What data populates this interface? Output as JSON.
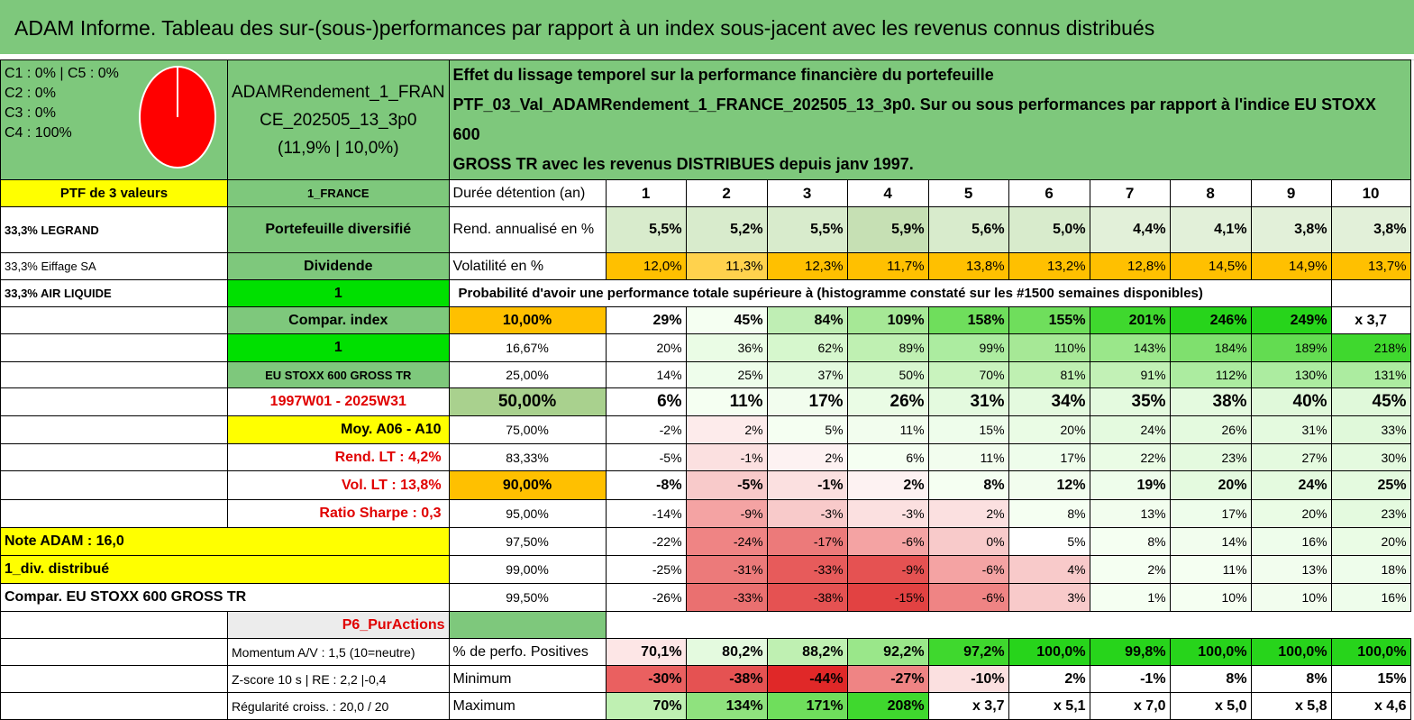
{
  "title": "ADAM Informe. Tableau des sur-(sous-)performances par rapport à un index sous-jacent avec les revenus connus distribués",
  "pie": {
    "labels": [
      "C1 : 0% | C5 : 0%",
      "C2 : 0%",
      "C3 : 0%",
      "C4 : 100%"
    ],
    "color": "#ff0000"
  },
  "portfolio": {
    "name": "ADAMRendement_1_FRAN\nCE_202505_13_3p0\n(11,9% | 10,0%)",
    "desc": "Effet du lissage temporel sur la performance financière du portefeuille\nPTF_03_Val_ADAMRendement_1_FRANCE_202505_13_3p0. Sur ou sous performances par rapport à l'indice EU STOXX 600\nGROSS TR avec les revenus DISTRIBUES depuis janv 1997.",
    "count": "PTF de 3 valeurs",
    "holdings": [
      "33,3% LEGRAND",
      "33,3% Eiffage SA",
      "33,3% AIR LIQUIDE"
    ]
  },
  "mid": {
    "country": "1_FRANCE",
    "diversified": "Portefeuille diversifié",
    "dividend": "Dividende",
    "one_a": "1",
    "compar": "Compar. index",
    "one_b": "1",
    "index": "EU STOXX 600 GROSS TR",
    "period": "1997W01 - 2025W31",
    "moy": "Moy. A06 - A10",
    "rend_lt": "Rend. LT : 4,2%",
    "vol_lt": "Vol. LT : 13,8%",
    "sharpe": "Ratio Sharpe : 0,3",
    "note": "Note ADAM : 16,0",
    "div_distrib": "1_div. distribué",
    "compar_full": "Compar. EU STOXX 600 GROSS TR",
    "p6": "P6_PurActions",
    "momentum": "Momentum A/V : 1,5 (10=neutre)",
    "zscore": "Z-score 10 s | RE : 2,2 |-0,4",
    "regularite": "Régularité croiss. : 20,0 / 20"
  },
  "table": {
    "duration_label": "Durée détention (an)",
    "years": [
      "1",
      "2",
      "3",
      "4",
      "5",
      "6",
      "7",
      "8",
      "9",
      "10"
    ],
    "rend_label": "Rend. annualisé en %",
    "rend": [
      "5,5%",
      "5,2%",
      "5,5%",
      "5,9%",
      "5,6%",
      "5,0%",
      "4,4%",
      "4,1%",
      "3,8%",
      "3,8%"
    ],
    "vol_label": "Volatilité en %",
    "vol": [
      "12,0%",
      "11,3%",
      "12,3%",
      "11,7%",
      "13,8%",
      "13,2%",
      "12,8%",
      "14,5%",
      "14,9%",
      "13,7%"
    ],
    "prob_title": "Probabilité d'avoir une performance totale supérieure à (histogramme constaté sur les #1500 semaines disponibles)",
    "rows": [
      {
        "p": "10,00%",
        "v": [
          "29%",
          "45%",
          "84%",
          "109%",
          "158%",
          "155%",
          "201%",
          "246%",
          "249%",
          "x 3,7"
        ]
      },
      {
        "p": "16,67%",
        "v": [
          "20%",
          "36%",
          "62%",
          "89%",
          "99%",
          "110%",
          "143%",
          "184%",
          "189%",
          "218%"
        ]
      },
      {
        "p": "25,00%",
        "v": [
          "14%",
          "25%",
          "37%",
          "50%",
          "70%",
          "81%",
          "91%",
          "112%",
          "130%",
          "131%"
        ]
      },
      {
        "p": "50,00%",
        "v": [
          "6%",
          "11%",
          "17%",
          "26%",
          "31%",
          "34%",
          "35%",
          "38%",
          "40%",
          "45%"
        ]
      },
      {
        "p": "75,00%",
        "v": [
          "-2%",
          "2%",
          "5%",
          "11%",
          "15%",
          "20%",
          "24%",
          "26%",
          "31%",
          "33%"
        ]
      },
      {
        "p": "83,33%",
        "v": [
          "-5%",
          "-1%",
          "2%",
          "6%",
          "11%",
          "17%",
          "22%",
          "23%",
          "27%",
          "30%"
        ]
      },
      {
        "p": "90,00%",
        "v": [
          "-8%",
          "-5%",
          "-1%",
          "2%",
          "8%",
          "12%",
          "19%",
          "20%",
          "24%",
          "25%"
        ]
      },
      {
        "p": "95,00%",
        "v": [
          "-14%",
          "-9%",
          "-3%",
          "-3%",
          "2%",
          "8%",
          "13%",
          "17%",
          "20%",
          "23%"
        ]
      },
      {
        "p": "97,50%",
        "v": [
          "-22%",
          "-24%",
          "-17%",
          "-6%",
          "0%",
          "5%",
          "8%",
          "14%",
          "16%",
          "20%"
        ]
      },
      {
        "p": "99,00%",
        "v": [
          "-25%",
          "-31%",
          "-33%",
          "-9%",
          "-6%",
          "4%",
          "2%",
          "11%",
          "13%",
          "18%"
        ]
      },
      {
        "p": "99,50%",
        "v": [
          "-26%",
          "-33%",
          "-38%",
          "-15%",
          "-6%",
          "3%",
          "1%",
          "10%",
          "10%",
          "16%"
        ]
      }
    ],
    "pos_label": "% de perfo. Positives",
    "pos": [
      "70,1%",
      "80,2%",
      "88,2%",
      "92,2%",
      "97,2%",
      "100,0%",
      "99,8%",
      "100,0%",
      "100,0%",
      "100,0%"
    ],
    "min_label": "Minimum",
    "min": [
      "-30%",
      "-38%",
      "-44%",
      "-27%",
      "-10%",
      "2%",
      "-1%",
      "8%",
      "8%",
      "15%"
    ],
    "max_label": "Maximum",
    "max": [
      "70%",
      "134%",
      "171%",
      "208%",
      "x 3,7",
      "x 5,1",
      "x 7,0",
      "x 5,0",
      "x 5,8",
      "x 4,6"
    ]
  },
  "colors": {
    "row_colors": [
      [
        "#ffffff",
        "#f5fff2",
        "#bfeeb4",
        "#a6e896",
        "#6fde5c",
        "#6fde5c",
        "#3fd82e",
        "#27d41b",
        "#27d41b",
        "#ffffff"
      ],
      [
        "#ffffff",
        "#eafce5",
        "#d6f7cd",
        "#bff0b2",
        "#aceca0",
        "#a6e896",
        "#9ae78a",
        "#7fe06e",
        "#63dc51",
        "#3fd82e"
      ],
      [
        "#ffffff",
        "#eefdeb",
        "#e4fadf",
        "#d8f7d0",
        "#c9f3be",
        "#bff0b2",
        "#c2f1b6",
        "#aceca0",
        "#aceca0",
        "#aceca0"
      ],
      [
        "#ffffff",
        "#f5fff2",
        "#f2fdee",
        "#eafce5",
        "#e4fadf",
        "#e4fadf",
        "#e4fadf",
        "#e4fadf",
        "#e0f9da",
        "#e0f9da"
      ],
      [
        "#ffffff",
        "#fdebeb",
        "#f5fff2",
        "#f2fdee",
        "#eefdeb",
        "#eafce5",
        "#e4fadf",
        "#e4fadf",
        "#e4fadf",
        "#e0f9da"
      ],
      [
        "#ffffff",
        "#fbe0e0",
        "#fdf2f2",
        "#f5fff2",
        "#f2fdee",
        "#eefdeb",
        "#eafce5",
        "#e4fadf",
        "#e4fadf",
        "#e4fadf"
      ],
      [
        "#ffffff",
        "#f8caca",
        "#fbe0e0",
        "#fdf2f2",
        "#f5fff2",
        "#f2fdee",
        "#eefdeb",
        "#e4fadf",
        "#e4fadf",
        "#e4fadf"
      ],
      [
        "#ffffff",
        "#f4a3a3",
        "#f8caca",
        "#fbe0e0",
        "#fbe0e0",
        "#f5fff2",
        "#f2fdee",
        "#eefdeb",
        "#eafce5",
        "#e4fadf"
      ],
      [
        "#ffffff",
        "#ef8484",
        "#ec7a7a",
        "#f4a3a3",
        "#f8caca",
        "#ffffff",
        "#f5fff2",
        "#f2fdee",
        "#eefdeb",
        "#eafce5"
      ],
      [
        "#ffffff",
        "#ec7a7a",
        "#e75b5b",
        "#e55252",
        "#f4a3a3",
        "#f8caca",
        "#f5fff2",
        "#f5fff2",
        "#f2fdee",
        "#eefdeb"
      ],
      [
        "#ffffff",
        "#ea7070",
        "#e55252",
        "#e24242",
        "#ef8484",
        "#f8caca",
        "#f5fff2",
        "#f5fff2",
        "#f2fdee",
        "#eefdeb"
      ]
    ],
    "rend": [
      "#d8ebcc",
      "#d8ebcc",
      "#d8ebcc",
      "#c6e0b4",
      "#d8ebcc",
      "#d8ebcc",
      "#e2f0d9",
      "#e2f0d9",
      "#e2f0d9",
      "#e2f0d9"
    ],
    "vol": [
      "#ffc000",
      "#ffd24d",
      "#ffc000",
      "#ffc000",
      "#ffc000",
      "#ffc000",
      "#ffc000",
      "#ffc000",
      "#ffc000",
      "#ffc000"
    ],
    "pos": [
      "#fde6e6",
      "#e4fadf",
      "#bff0b2",
      "#9ae78a",
      "#3fd82e",
      "#27d41b",
      "#27d41b",
      "#27d41b",
      "#27d41b",
      "#27d41b"
    ],
    "min": [
      "#ea6060",
      "#e55252",
      "#e02828",
      "#ef8484",
      "#fbe0e0",
      "#ffffff",
      "#ffffff",
      "#ffffff",
      "#ffffff",
      "#ffffff"
    ],
    "max": [
      "#bff0b2",
      "#8fe27e",
      "#6fde5c",
      "#3fd82e",
      "#ffffff",
      "#ffffff",
      "#ffffff",
      "#ffffff",
      "#ffffff",
      "#ffffff"
    ]
  }
}
